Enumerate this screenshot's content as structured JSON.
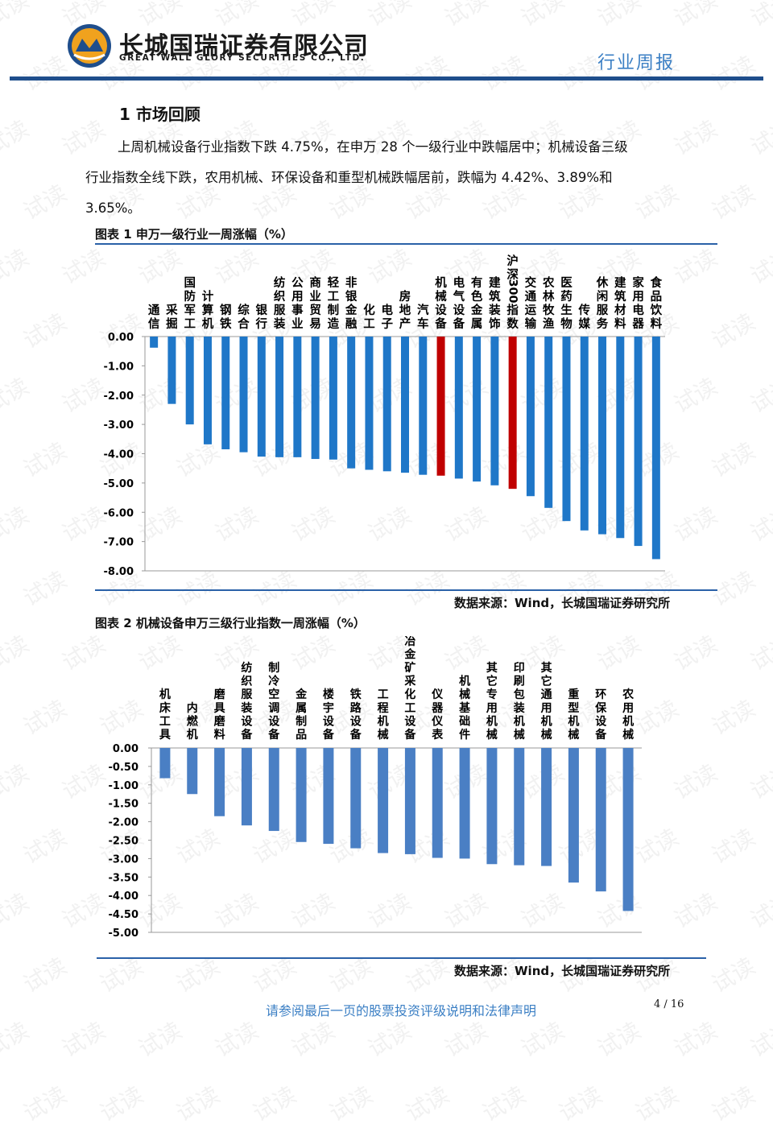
{
  "header": {
    "company_cn": "长城国瑞证券有限公司",
    "company_en": "GREAT WALL GLORY SECURITIES CO., LTD.",
    "report_type": "行业周报"
  },
  "section": {
    "title": "1  市场回顾",
    "para_line1": "上周机械设备行业指数下跌 4.75%，在申万 28 个一级行业中跌幅居中；机械设备三级",
    "para_line2": "行业指数全线下跌，农用机械、环保设备和重型机械跌幅居前，跌幅为 4.42%、3.89%和",
    "para_line3": "3.65%。"
  },
  "fig1": {
    "title": "图表 1  申万一级行业一周涨幅（%）",
    "source": "数据来源：Wind，长城国瑞证券研究所"
  },
  "fig2": {
    "title": "图表 2  机械设备申万三级行业指数一周涨幅（%）",
    "source": "数据来源：Wind，长城国瑞证券研究所"
  },
  "footer": {
    "note": "请参阅最后一页的股票投资评级说明和法律声明",
    "page": "4 / 16"
  },
  "watermark_text": "试读",
  "colors": {
    "bar_blue": "#1f77c8",
    "bar_red": "#c00000",
    "bar_blue2": "#4a7fc4",
    "rule": "#2a61a8",
    "accent": "#3b7fc4"
  },
  "chart_data": [
    {
      "type": "bar",
      "title": "申万一级行业一周涨幅（%）",
      "categories": [
        "通信",
        "采掘",
        "国防军工",
        "计算机",
        "钢铁",
        "综合",
        "银行",
        "纺织服装",
        "公用事业",
        "商业贸易",
        "轻工制造",
        "非银金融",
        "化工",
        "电子",
        "房地产",
        "汽车",
        "机械设备",
        "电气设备",
        "有色金属",
        "建筑装饰",
        "沪深300指数",
        "交通运输",
        "农林牧渔",
        "医药生物",
        "传媒",
        "休闲服务",
        "建筑材料",
        "家用电器",
        "食品饮料"
      ],
      "values": [
        -0.38,
        -2.3,
        -3.0,
        -3.68,
        -3.85,
        -3.95,
        -4.1,
        -4.12,
        -4.12,
        -4.18,
        -4.2,
        -4.5,
        -4.55,
        -4.6,
        -4.65,
        -4.72,
        -4.75,
        -4.85,
        -4.95,
        -5.08,
        -5.2,
        -5.45,
        -5.85,
        -6.3,
        -6.62,
        -6.75,
        -6.88,
        -7.15,
        -7.6
      ],
      "highlight": [
        "机械设备",
        "沪深300指数"
      ],
      "ylim": [
        -8.0,
        0.0
      ],
      "yticks": [
        "0.00",
        "-1.00",
        "-2.00",
        "-3.00",
        "-4.00",
        "-5.00",
        "-6.00",
        "-7.00",
        "-8.00"
      ],
      "ytick_values": [
        0,
        -1,
        -2,
        -3,
        -4,
        -5,
        -6,
        -7,
        -8
      ]
    },
    {
      "type": "bar",
      "title": "机械设备申万三级行业指数一周涨幅（%）",
      "categories": [
        "机床工具",
        "内燃机",
        "磨具磨料",
        "纺织服装设备",
        "制冷空调设备",
        "金属制品",
        "楼宇设备",
        "铁路设备",
        "工程机械",
        "冶金矿采化工设备",
        "仪器仪表",
        "机械基础件",
        "其它专用机械",
        "印刷包装机械",
        "其它通用机械",
        "重型机械",
        "环保设备",
        "农用机械"
      ],
      "values": [
        -0.82,
        -1.25,
        -1.85,
        -2.1,
        -2.25,
        -2.55,
        -2.6,
        -2.72,
        -2.85,
        -2.88,
        -2.98,
        -3.0,
        -3.15,
        -3.18,
        -3.2,
        -3.65,
        -3.89,
        -4.42
      ],
      "ylim": [
        -5.0,
        0.0
      ],
      "yticks": [
        "0.00",
        "-0.50",
        "-1.00",
        "-1.50",
        "-2.00",
        "-2.50",
        "-3.00",
        "-3.50",
        "-4.00",
        "-4.50",
        "-5.00"
      ],
      "ytick_values": [
        0,
        -0.5,
        -1,
        -1.5,
        -2,
        -2.5,
        -3,
        -3.5,
        -4,
        -4.5,
        -5
      ]
    }
  ]
}
